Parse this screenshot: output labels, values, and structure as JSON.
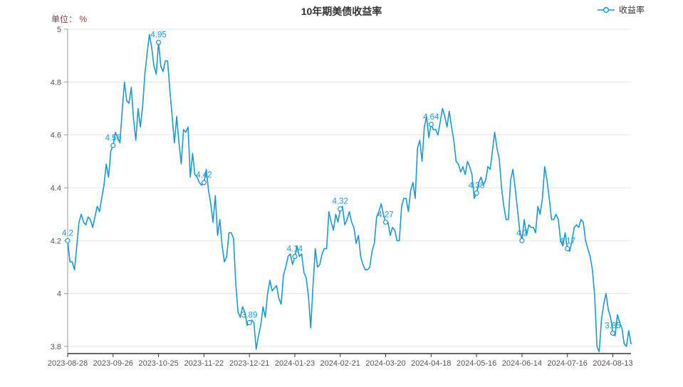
{
  "header": {
    "title": "10年期美债收益率",
    "unit_label": "单位： %"
  },
  "legend": {
    "items": [
      {
        "label": "收益率",
        "marker": "line-circle",
        "color": "#1a9ad6"
      }
    ]
  },
  "chart_data": {
    "type": "line",
    "title": "10年期美债收益率",
    "ylabel": "单位：%",
    "legend_position": "top-right",
    "grid": true,
    "colors": {
      "line": "#1a9ad6",
      "grid": "#e6e6e6",
      "x_axis": "#333333",
      "y_axis": "#999999",
      "text": "#555555"
    },
    "y_axis": {
      "max": 5,
      "min_display": 3.8,
      "ticks": [
        3.8,
        4,
        4.2,
        4.4,
        4.6,
        4.8,
        5
      ],
      "tick_labels": [
        "3.8",
        "4",
        "4.2",
        "4.4",
        "4.6",
        "4.8",
        "5"
      ]
    },
    "x_axis": {
      "tick_indices": [
        0,
        20,
        40,
        60,
        80,
        100,
        120,
        140,
        160,
        180,
        200,
        220,
        240
      ],
      "tick_labels": [
        "2023-08-28",
        "2023-09-26",
        "2023-10-25",
        "2023-11-22",
        "2023-12-21",
        "2024-01-23",
        "2024-02-21",
        "2024-03-20",
        "2024-04-18",
        "2024-05-16",
        "2024-06-14",
        "2024-07-16",
        "2024-08-13"
      ]
    },
    "labeled_points": [
      {
        "index": 0,
        "label": "4.2"
      },
      {
        "index": 20,
        "label": "4.56"
      },
      {
        "index": 40,
        "label": "4.95"
      },
      {
        "index": 60,
        "label": "4.42"
      },
      {
        "index": 80,
        "label": "3.89"
      },
      {
        "index": 100,
        "label": "4.14"
      },
      {
        "index": 120,
        "label": "4.32"
      },
      {
        "index": 140,
        "label": "4.27"
      },
      {
        "index": 160,
        "label": "4.64"
      },
      {
        "index": 180,
        "label": "4.38"
      },
      {
        "index": 200,
        "label": "4.2"
      },
      {
        "index": 220,
        "label": "4.17"
      },
      {
        "index": 240,
        "label": "3.85"
      }
    ],
    "series": [
      {
        "name": "收益率",
        "color": "#1a9ad6",
        "values": [
          4.2,
          4.12,
          4.12,
          4.09,
          4.18,
          4.27,
          4.3,
          4.27,
          4.26,
          4.29,
          4.28,
          4.25,
          4.29,
          4.33,
          4.31,
          4.36,
          4.41,
          4.49,
          4.44,
          4.54,
          4.56,
          4.61,
          4.59,
          4.57,
          4.69,
          4.8,
          4.73,
          4.72,
          4.78,
          4.66,
          4.58,
          4.7,
          4.63,
          4.71,
          4.83,
          4.91,
          4.98,
          4.93,
          4.86,
          4.83,
          4.95,
          4.86,
          4.84,
          4.88,
          4.88,
          4.77,
          4.67,
          4.57,
          4.67,
          4.57,
          4.49,
          4.62,
          4.61,
          4.63,
          4.44,
          4.53,
          4.45,
          4.44,
          4.42,
          4.41,
          4.42,
          4.47,
          4.39,
          4.34,
          4.27,
          4.37,
          4.22,
          4.28,
          4.18,
          4.12,
          4.14,
          4.23,
          4.23,
          4.21,
          4.04,
          3.93,
          3.91,
          3.95,
          3.93,
          3.88,
          3.89,
          3.9,
          3.89,
          3.79,
          3.84,
          3.88,
          3.95,
          3.91,
          4.0,
          4.05,
          4.01,
          4.02,
          4.03,
          3.98,
          3.96,
          4.07,
          4.1,
          4.14,
          4.15,
          4.11,
          4.14,
          4.18,
          4.14,
          4.15,
          4.08,
          4.06,
          3.99,
          3.87,
          4.03,
          4.17,
          4.1,
          4.11,
          4.15,
          4.17,
          4.17,
          4.31,
          4.27,
          4.24,
          4.3,
          4.27,
          4.32,
          4.33,
          4.26,
          4.28,
          4.31,
          4.27,
          4.25,
          4.19,
          4.22,
          4.14,
          4.11,
          4.09,
          4.09,
          4.1,
          4.16,
          4.19,
          4.29,
          4.31,
          4.34,
          4.3,
          4.27,
          4.27,
          4.22,
          4.25,
          4.24,
          4.2,
          4.2,
          4.33,
          4.36,
          4.36,
          4.31,
          4.39,
          4.42,
          4.36,
          4.55,
          4.58,
          4.5,
          4.63,
          4.67,
          4.59,
          4.64,
          4.62,
          4.62,
          4.6,
          4.65,
          4.7,
          4.67,
          4.63,
          4.69,
          4.63,
          4.58,
          4.5,
          4.49,
          4.46,
          4.48,
          4.45,
          4.5,
          4.48,
          4.45,
          4.36,
          4.38,
          4.42,
          4.44,
          4.41,
          4.43,
          4.48,
          4.47,
          4.54,
          4.61,
          4.55,
          4.51,
          4.4,
          4.33,
          4.28,
          4.28,
          4.43,
          4.47,
          4.4,
          4.32,
          4.24,
          4.2,
          4.28,
          4.22,
          4.26,
          4.25,
          4.25,
          4.23,
          4.33,
          4.3,
          4.36,
          4.48,
          4.43,
          4.36,
          4.28,
          4.28,
          4.3,
          4.28,
          4.2,
          4.18,
          4.23,
          4.17,
          4.16,
          4.2,
          4.25,
          4.26,
          4.25,
          4.28,
          4.27,
          4.2,
          4.17,
          4.14,
          4.09,
          3.99,
          3.8,
          3.78,
          3.9,
          3.96,
          4.0,
          3.94,
          3.91,
          3.85,
          3.84,
          3.92,
          3.89,
          3.87,
          3.81,
          3.8,
          3.86,
          3.81
        ]
      }
    ]
  }
}
